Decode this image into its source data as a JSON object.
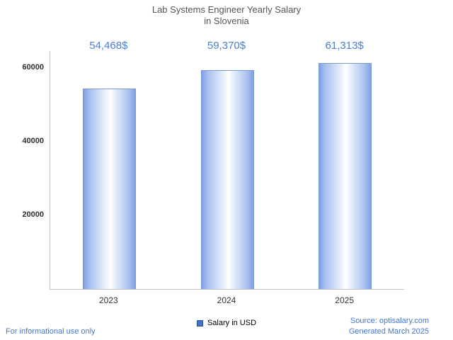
{
  "title": {
    "line1": "Lab Systems Engineer Yearly Salary",
    "line2": "in Slovenia"
  },
  "chart_data": {
    "type": "bar",
    "title": "Lab Systems Engineer Yearly Salary in Slovenia",
    "categories": [
      "2023",
      "2024",
      "2025"
    ],
    "values": [
      54468,
      59370,
      61313
    ],
    "value_labels": [
      "54,468$",
      "59,370$",
      "61,313$"
    ],
    "series_name": "Salary in USD",
    "xlabel": "",
    "ylabel": "",
    "ylim": [
      0,
      64615
    ],
    "yticks": [
      20000,
      40000,
      60000
    ],
    "grid": false,
    "legend_position": "bottom",
    "bar_color_edge": "#7fa0e4",
    "bar_color_center": "#ffffff",
    "value_label_color": "#4a7fd4"
  },
  "legend": {
    "label": "Salary in USD",
    "swatch_color": "#4472c4"
  },
  "footer": {
    "left": "For informational use only",
    "source": "Source: optisalary.com",
    "generated": "Generated March 2025"
  }
}
